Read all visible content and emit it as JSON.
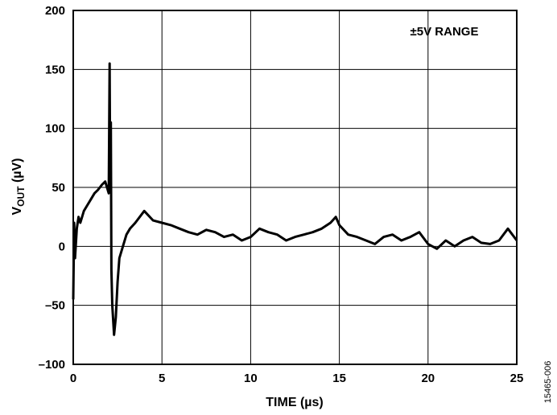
{
  "chart_data": {
    "type": "line",
    "title": "",
    "xlabel": "TIME (µs)",
    "ylabel_main": "V",
    "ylabel_sub": "OUT",
    "ylabel_unit": " (µV)",
    "xlim": [
      0,
      25
    ],
    "ylim": [
      -100,
      200
    ],
    "xticks": [
      0,
      5,
      10,
      15,
      20,
      25
    ],
    "yticks": [
      -100,
      -50,
      0,
      50,
      100,
      150,
      200
    ],
    "xtick_labels": [
      "0",
      "5",
      "10",
      "15",
      "20",
      "25"
    ],
    "ytick_labels": [
      "–100",
      "–50",
      "0",
      "50",
      "100",
      "150",
      "200"
    ],
    "grid": true,
    "annotation": "±5V RANGE",
    "figure_id": "15465-006",
    "line_color": "#000000",
    "series": [
      {
        "x": [
          0,
          0.05,
          0.1,
          0.2,
          0.3,
          0.4,
          0.6,
          0.8,
          1.0,
          1.2,
          1.4,
          1.6,
          1.8,
          1.9,
          2.0,
          2.05,
          2.08,
          2.12,
          2.15,
          2.2,
          2.3,
          2.4,
          2.5,
          2.6,
          2.8,
          3.0,
          3.2,
          3.5,
          4.0,
          4.5,
          5.0,
          5.5,
          6.0,
          6.5,
          7.0,
          7.5,
          8.0,
          8.5,
          9.0,
          9.5,
          10.0,
          10.5,
          11.0,
          11.5,
          12.0,
          12.5,
          13.0,
          13.5,
          14.0,
          14.5,
          14.8,
          15.0,
          15.5,
          16.0,
          16.5,
          17.0,
          17.5,
          18.0,
          18.5,
          19.0,
          19.5,
          20.0,
          20.5,
          21.0,
          21.5,
          22.0,
          22.5,
          23.0,
          23.5,
          24.0,
          24.5,
          25.0
        ],
        "y": [
          -45,
          20,
          -10,
          15,
          25,
          20,
          30,
          35,
          40,
          45,
          48,
          52,
          55,
          50,
          45,
          155,
          60,
          105,
          -20,
          -50,
          -75,
          -60,
          -30,
          -10,
          0,
          10,
          15,
          20,
          30,
          22,
          20,
          18,
          15,
          12,
          10,
          14,
          12,
          8,
          10,
          5,
          8,
          15,
          12,
          10,
          5,
          8,
          10,
          12,
          15,
          20,
          25,
          18,
          10,
          8,
          5,
          2,
          8,
          10,
          5,
          8,
          12,
          2,
          -2,
          5,
          0,
          5,
          8,
          3,
          2,
          5,
          15,
          5
        ]
      }
    ]
  }
}
